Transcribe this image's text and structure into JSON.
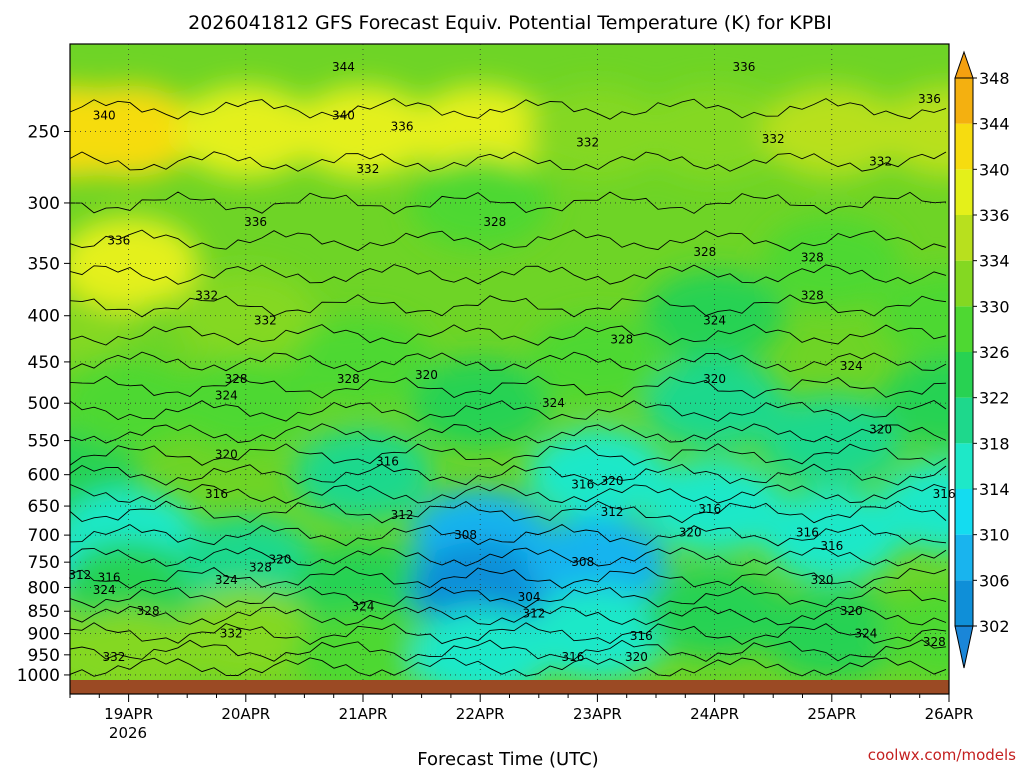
{
  "chart_data": {
    "type": "heatmap",
    "title": "2026041812 GFS Forecast Equiv. Potential Temperature (K) for KPBI",
    "xlabel": "Forecast Time (UTC)",
    "ylabel": "",
    "credit": "coolwx.com/models",
    "x_ticks": [
      "19APR",
      "20APR",
      "21APR",
      "22APR",
      "23APR",
      "24APR",
      "25APR",
      "26APR"
    ],
    "x_year_label": "2026",
    "x_range": [
      "2026-04-18T12:00Z",
      "2026-04-26T00:00Z"
    ],
    "y_ticks": [
      250,
      300,
      350,
      400,
      450,
      500,
      550,
      600,
      650,
      700,
      750,
      800,
      850,
      900,
      950,
      1000
    ],
    "y_range": [
      200,
      1013
    ],
    "y_scale": "log-pressure",
    "colorbar": {
      "levels": [
        302,
        306,
        310,
        314,
        318,
        322,
        326,
        330,
        334,
        336,
        340,
        344,
        348
      ],
      "colors": [
        "#0f8fd8",
        "#19b4ee",
        "#14dcf0",
        "#1ee8c8",
        "#1ed88c",
        "#28d252",
        "#4ed832",
        "#84d822",
        "#b8e01e",
        "#e4f01a",
        "#f6dc10",
        "#f4b010"
      ],
      "extend": "both"
    },
    "series": [
      {
        "name": "Theta-E",
        "points": [
          {
            "time": "2026-04-18T12:00Z",
            "values": [
              {
                "p": 250,
                "k": 341
              },
              {
                "p": 400,
                "k": 332
              },
              {
                "p": 600,
                "k": 322
              },
              {
                "p": 780,
                "k": 312
              },
              {
                "p": 900,
                "k": 330
              }
            ]
          },
          {
            "time": "2026-04-19T00:00Z",
            "values": [
              {
                "p": 250,
                "k": 340
              },
              {
                "p": 350,
                "k": 336
              },
              {
                "p": 500,
                "k": 326
              },
              {
                "p": 700,
                "k": 316
              },
              {
                "p": 800,
                "k": 324
              },
              {
                "p": 950,
                "k": 332
              }
            ]
          },
          {
            "time": "2026-04-20T00:00Z",
            "values": [
              {
                "p": 250,
                "k": 338
              },
              {
                "p": 400,
                "k": 332
              },
              {
                "p": 500,
                "k": 328
              },
              {
                "p": 750,
                "k": 320
              },
              {
                "p": 900,
                "k": 332
              }
            ]
          },
          {
            "time": "2026-04-21T00:00Z",
            "values": [
              {
                "p": 250,
                "k": 336
              },
              {
                "p": 450,
                "k": 328
              },
              {
                "p": 600,
                "k": 320
              },
              {
                "p": 800,
                "k": 322
              },
              {
                "p": 950,
                "k": 328
              }
            ]
          },
          {
            "time": "2026-04-22T00:00Z",
            "values": [
              {
                "p": 250,
                "k": 336
              },
              {
                "p": 300,
                "k": 328
              },
              {
                "p": 500,
                "k": 324
              },
              {
                "p": 700,
                "k": 308
              },
              {
                "p": 800,
                "k": 304
              },
              {
                "p": 950,
                "k": 316
              }
            ]
          },
          {
            "time": "2026-04-23T00:00Z",
            "values": [
              {
                "p": 250,
                "k": 332
              },
              {
                "p": 450,
                "k": 328
              },
              {
                "p": 600,
                "k": 316
              },
              {
                "p": 750,
                "k": 308
              },
              {
                "p": 900,
                "k": 316
              }
            ]
          },
          {
            "time": "2026-04-24T00:00Z",
            "values": [
              {
                "p": 250,
                "k": 332
              },
              {
                "p": 400,
                "k": 324
              },
              {
                "p": 500,
                "k": 320
              },
              {
                "p": 650,
                "k": 316
              },
              {
                "p": 850,
                "k": 324
              }
            ]
          },
          {
            "time": "2026-04-25T00:00Z",
            "values": [
              {
                "p": 250,
                "k": 334
              },
              {
                "p": 350,
                "k": 328
              },
              {
                "p": 550,
                "k": 320
              },
              {
                "p": 700,
                "k": 316
              },
              {
                "p": 900,
                "k": 324
              }
            ]
          },
          {
            "time": "2026-04-26T00:00Z",
            "values": [
              {
                "p": 250,
                "k": 334
              },
              {
                "p": 400,
                "k": 328
              },
              {
                "p": 500,
                "k": 324
              },
              {
                "p": 650,
                "k": 316
              },
              {
                "p": 900,
                "k": 328
              }
            ]
          }
        ]
      }
    ],
    "contour_labels": [
      {
        "text": "344",
        "time": "2026-04-20T20:00Z",
        "p": 212
      },
      {
        "text": "336",
        "time": "2026-04-24T06:00Z",
        "p": 212
      },
      {
        "text": "340",
        "time": "2026-04-18T19:00Z",
        "p": 240
      },
      {
        "text": "340",
        "time": "2026-04-20T20:00Z",
        "p": 240
      },
      {
        "text": "336",
        "time": "2026-04-25T20:00Z",
        "p": 230
      },
      {
        "text": "336",
        "time": "2026-04-21T08:00Z",
        "p": 247
      },
      {
        "text": "332",
        "time": "2026-04-22T22:00Z",
        "p": 257
      },
      {
        "text": "332",
        "time": "2026-04-24T12:00Z",
        "p": 255
      },
      {
        "text": "332",
        "time": "2026-04-21T01:00Z",
        "p": 275
      },
      {
        "text": "332",
        "time": "2026-04-25T10:00Z",
        "p": 270
      },
      {
        "text": "336",
        "time": "2026-04-20T02:00Z",
        "p": 315
      },
      {
        "text": "328",
        "time": "2026-04-22T03:00Z",
        "p": 315
      },
      {
        "text": "336",
        "time": "2026-04-18T22:00Z",
        "p": 330
      },
      {
        "text": "328",
        "time": "2026-04-24T20:00Z",
        "p": 345
      },
      {
        "text": "328",
        "time": "2026-04-23T22:00Z",
        "p": 340
      },
      {
        "text": "332",
        "time": "2026-04-19T16:00Z",
        "p": 380
      },
      {
        "text": "328",
        "time": "2026-04-24T20:00Z",
        "p": 380
      },
      {
        "text": "332",
        "time": "2026-04-20T04:00Z",
        "p": 405
      },
      {
        "text": "324",
        "time": "2026-04-24T00:00Z",
        "p": 405
      },
      {
        "text": "328",
        "time": "2026-04-23T05:00Z",
        "p": 425
      },
      {
        "text": "324",
        "time": "2026-04-25T04:00Z",
        "p": 455
      },
      {
        "text": "328",
        "time": "2026-04-19T22:00Z",
        "p": 470
      },
      {
        "text": "328",
        "time": "2026-04-20T21:00Z",
        "p": 470
      },
      {
        "text": "320",
        "time": "2026-04-21T13:00Z",
        "p": 465
      },
      {
        "text": "320",
        "time": "2026-04-24T00:00Z",
        "p": 470
      },
      {
        "text": "324",
        "time": "2026-04-19T20:00Z",
        "p": 490
      },
      {
        "text": "324",
        "time": "2026-04-22T15:00Z",
        "p": 500
      },
      {
        "text": "320",
        "time": "2026-04-25T10:00Z",
        "p": 535
      },
      {
        "text": "320",
        "time": "2026-04-19T20:00Z",
        "p": 570
      },
      {
        "text": "316",
        "time": "2026-04-21T05:00Z",
        "p": 580
      },
      {
        "text": "316",
        "time": "2026-04-22T21:00Z",
        "p": 615
      },
      {
        "text": "320",
        "time": "2026-04-23T03:00Z",
        "p": 610
      },
      {
        "text": "316",
        "time": "2026-04-19T18:00Z",
        "p": 630
      },
      {
        "text": "312",
        "time": "2026-04-23T03:00Z",
        "p": 660
      },
      {
        "text": "316",
        "time": "2026-04-23T23:00Z",
        "p": 655
      },
      {
        "text": "316",
        "time": "2026-04-25T23:00Z",
        "p": 630
      },
      {
        "text": "312",
        "time": "2026-04-21T08:00Z",
        "p": 665
      },
      {
        "text": "308",
        "time": "2026-04-21T21:00Z",
        "p": 700
      },
      {
        "text": "320",
        "time": "2026-04-23T19:00Z",
        "p": 695
      },
      {
        "text": "316",
        "time": "2026-04-24T19:00Z",
        "p": 695
      },
      {
        "text": "316",
        "time": "2026-04-25T00:00Z",
        "p": 720
      },
      {
        "text": "320",
        "time": "2026-04-20T07:00Z",
        "p": 745
      },
      {
        "text": "328",
        "time": "2026-04-20T03:00Z",
        "p": 760
      },
      {
        "text": "308",
        "time": "2026-04-22T21:00Z",
        "p": 750
      },
      {
        "text": "312",
        "time": "2026-04-18T14:00Z",
        "p": 775
      },
      {
        "text": "316",
        "time": "2026-04-18T20:00Z",
        "p": 780
      },
      {
        "text": "324",
        "time": "2026-04-19T20:00Z",
        "p": 785
      },
      {
        "text": "320",
        "time": "2026-04-24T22:00Z",
        "p": 785
      },
      {
        "text": "324",
        "time": "2026-04-18T19:00Z",
        "p": 805
      },
      {
        "text": "304",
        "time": "2026-04-22T10:00Z",
        "p": 820
      },
      {
        "text": "328",
        "time": "2026-04-19T04:00Z",
        "p": 850
      },
      {
        "text": "324",
        "time": "2026-04-21T00:00Z",
        "p": 840
      },
      {
        "text": "312",
        "time": "2026-04-22T11:00Z",
        "p": 855
      },
      {
        "text": "320",
        "time": "2026-04-25T04:00Z",
        "p": 850
      },
      {
        "text": "332",
        "time": "2026-04-19T21:00Z",
        "p": 900
      },
      {
        "text": "316",
        "time": "2026-04-23T09:00Z",
        "p": 905
      },
      {
        "text": "324",
        "time": "2026-04-25T07:00Z",
        "p": 900
      },
      {
        "text": "328",
        "time": "2026-04-25T21:00Z",
        "p": 920
      },
      {
        "text": "332",
        "time": "2026-04-18T21:00Z",
        "p": 955
      },
      {
        "text": "316",
        "time": "2026-04-22T19:00Z",
        "p": 955
      },
      {
        "text": "320",
        "time": "2026-04-23T08:00Z",
        "p": 955
      }
    ]
  }
}
